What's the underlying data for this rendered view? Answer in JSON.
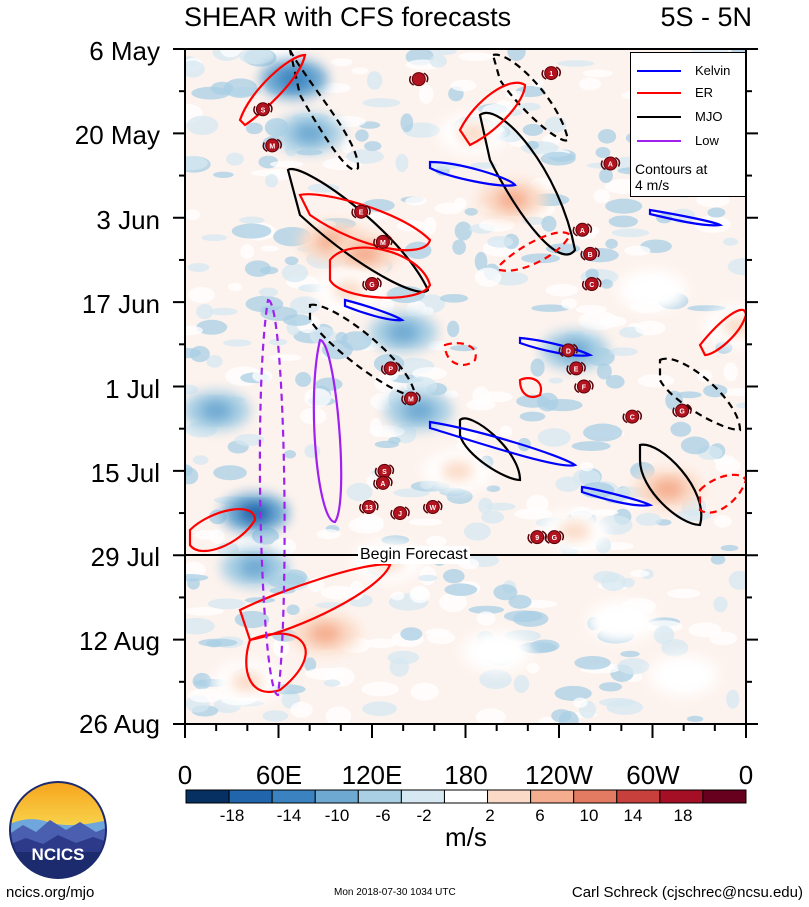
{
  "title_left": "SHEAR with CFS forecasts",
  "title_right": "5S - 5N",
  "footer": {
    "left": "ncics.org/mjo",
    "center": "Mon 2018-07-30 1034 UTC",
    "right": "Carl Schreck (cjschrec@ncsu.edu)"
  },
  "logo_text": "NCICS",
  "forecast_label": "Begin Forecast",
  "legend": {
    "items": [
      {
        "label": "Kelvin",
        "color": "#0000ff"
      },
      {
        "label": "ER",
        "color": "#ff0000"
      },
      {
        "label": "MJO",
        "color": "#000000"
      },
      {
        "label": "Low",
        "color": "#a020f0"
      }
    ],
    "note_line1": "Contours at",
    "note_line2": "4 m/s"
  },
  "chart_data": {
    "type": "heatmap",
    "title": "SHEAR with CFS forecasts",
    "region": "5S - 5N",
    "x_ticks": [
      "0",
      "60E",
      "120E",
      "180",
      "120W",
      "60W",
      "0"
    ],
    "x_range_lon": [
      0,
      360
    ],
    "y_ticks": [
      "6 May",
      "20 May",
      "3 Jun",
      "17 Jun",
      "1 Jul",
      "15 Jul",
      "29 Jul",
      "12 Aug",
      "26 Aug"
    ],
    "y_range_days_from_6May": [
      0,
      112
    ],
    "forecast_start": "29 Jul",
    "colorbar": {
      "units": "m/s",
      "tick_labels": [
        "-18",
        "-14",
        "-10",
        "-6",
        "-2",
        "2",
        "6",
        "10",
        "14",
        "18"
      ],
      "colors": [
        "#053061",
        "#2166ac",
        "#3a83c0",
        "#6ea9d2",
        "#a8cfe4",
        "#d6e8f2",
        "#ffffff",
        "#fbdbc8",
        "#f5ad8f",
        "#e37b62",
        "#c7403b",
        "#a50f26",
        "#67001f"
      ]
    },
    "anomalies": [
      {
        "lon": 70,
        "day": 5,
        "value": -10
      },
      {
        "lon": 80,
        "day": 14,
        "value": -8
      },
      {
        "lon": 95,
        "day": 32,
        "value": 12
      },
      {
        "lon": 115,
        "day": 34,
        "value": 14
      },
      {
        "lon": 105,
        "day": 40,
        "value": 10
      },
      {
        "lon": 210,
        "day": 25,
        "value": 12
      },
      {
        "lon": 185,
        "day": 14,
        "value": 8
      },
      {
        "lon": 250,
        "day": 80,
        "value": 8
      },
      {
        "lon": 310,
        "day": 73,
        "value": 14
      },
      {
        "lon": 45,
        "day": 77,
        "value": -16
      },
      {
        "lon": 45,
        "day": 86,
        "value": -8
      },
      {
        "lon": 90,
        "day": 97,
        "value": 14
      },
      {
        "lon": 130,
        "day": 85,
        "value": 10
      },
      {
        "lon": 175,
        "day": 70,
        "value": 8
      },
      {
        "lon": 150,
        "day": 60,
        "value": -6
      },
      {
        "lon": 140,
        "day": 47,
        "value": -8
      },
      {
        "lon": 355,
        "day": 46,
        "value": 10
      },
      {
        "lon": 20,
        "day": 60,
        "value": -6
      },
      {
        "lon": 250,
        "day": 50,
        "value": -6
      },
      {
        "lon": 300,
        "day": 40,
        "value": 6
      },
      {
        "lon": 40,
        "day": 105,
        "value": 8
      },
      {
        "lon": 200,
        "day": 100,
        "value": 6
      },
      {
        "lon": 280,
        "day": 95,
        "value": 6
      },
      {
        "lon": 320,
        "day": 104,
        "value": 6
      }
    ],
    "storms": [
      {
        "letter": "S",
        "lon": 50,
        "day": 10
      },
      {
        "letter": "M",
        "lon": 56,
        "day": 16
      },
      {
        "letter": "",
        "lon": 150,
        "day": 5
      },
      {
        "letter": "1",
        "lon": 235,
        "day": 4
      },
      {
        "letter": "A",
        "lon": 273,
        "day": 19
      },
      {
        "letter": "E",
        "lon": 113,
        "day": 27
      },
      {
        "letter": "M",
        "lon": 127,
        "day": 32
      },
      {
        "letter": "G",
        "lon": 120,
        "day": 39
      },
      {
        "letter": "A",
        "lon": 255,
        "day": 30
      },
      {
        "letter": "B",
        "lon": 260,
        "day": 34
      },
      {
        "letter": "C",
        "lon": 261,
        "day": 39
      },
      {
        "letter": "D",
        "lon": 246,
        "day": 50
      },
      {
        "letter": "E",
        "lon": 251,
        "day": 53
      },
      {
        "letter": "F",
        "lon": 256,
        "day": 56
      },
      {
        "letter": "P",
        "lon": 132,
        "day": 53
      },
      {
        "letter": "M",
        "lon": 145,
        "day": 58
      },
      {
        "letter": "C",
        "lon": 287,
        "day": 61
      },
      {
        "letter": "G",
        "lon": 319,
        "day": 60
      },
      {
        "letter": "S",
        "lon": 128,
        "day": 70
      },
      {
        "letter": "A",
        "lon": 127,
        "day": 72
      },
      {
        "letter": "13",
        "lon": 118,
        "day": 76
      },
      {
        "letter": "J",
        "lon": 138,
        "day": 77
      },
      {
        "letter": "W",
        "lon": 159,
        "day": 76
      },
      {
        "letter": "9",
        "lon": 226,
        "day": 81
      },
      {
        "letter": "G",
        "lon": 237,
        "day": 81
      }
    ]
  }
}
